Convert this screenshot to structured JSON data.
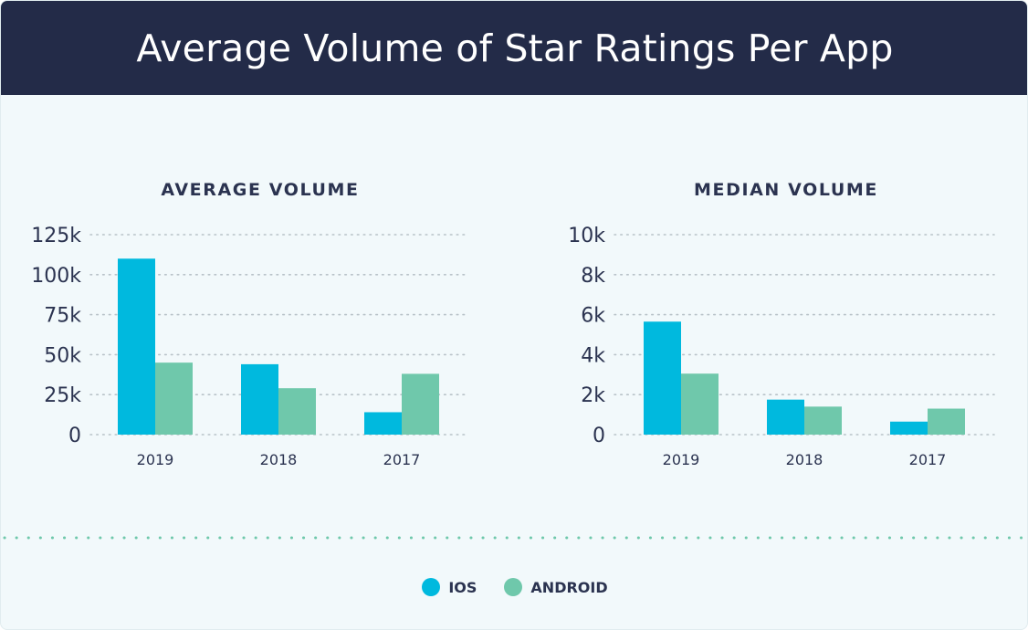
{
  "title": "Average Volume of Star Ratings Per App",
  "colors": {
    "ios": "#00b9de",
    "android": "#6fc8ab",
    "header_bg": "#232b48",
    "text": "#2b3350",
    "grid": "#b8c2c8"
  },
  "legend": [
    {
      "label": "IOS",
      "color": "#00b9de"
    },
    {
      "label": "ANDROID",
      "color": "#6fc8ab"
    }
  ],
  "chart_data": [
    {
      "type": "bar",
      "title": "AVERAGE VOLUME",
      "categories": [
        "2019",
        "2018",
        "2017"
      ],
      "yticks": [
        "0",
        "25k",
        "50k",
        "75k",
        "100k",
        "125k"
      ],
      "ylim": [
        0,
        125000
      ],
      "grid": true,
      "series": [
        {
          "name": "IOS",
          "color": "#00b9de",
          "values": [
            110000,
            44000,
            14000
          ]
        },
        {
          "name": "ANDROID",
          "color": "#6fc8ab",
          "values": [
            45000,
            29000,
            38000
          ]
        }
      ]
    },
    {
      "type": "bar",
      "title": "MEDIAN VOLUME",
      "categories": [
        "2019",
        "2018",
        "2017"
      ],
      "yticks": [
        "0",
        "2k",
        "4k",
        "6k",
        "8k",
        "10k"
      ],
      "ylim": [
        0,
        10000
      ],
      "grid": true,
      "series": [
        {
          "name": "IOS",
          "color": "#00b9de",
          "values": [
            5650,
            1750,
            650
          ]
        },
        {
          "name": "ANDROID",
          "color": "#6fc8ab",
          "values": [
            3050,
            1400,
            1300
          ]
        }
      ]
    }
  ]
}
